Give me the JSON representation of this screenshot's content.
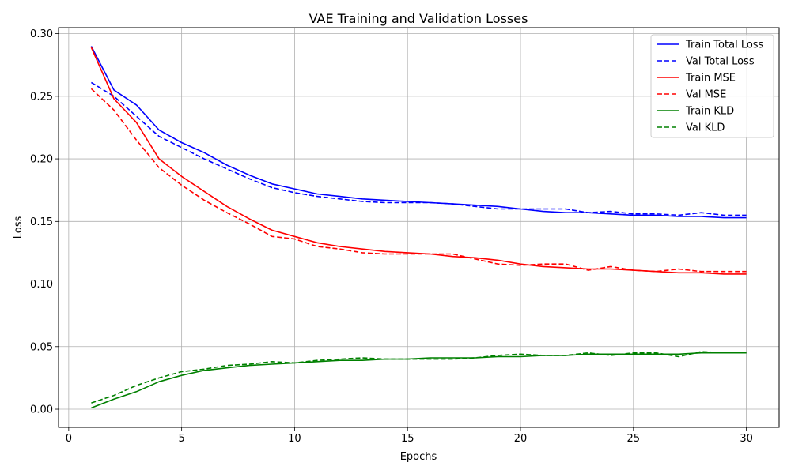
{
  "chart_data": {
    "type": "line",
    "title": "VAE Training and Validation Losses",
    "xlabel": "Epochs",
    "ylabel": "Loss",
    "xlim": [
      -0.45,
      31.45
    ],
    "ylim": [
      -0.0145,
      0.3048
    ],
    "xticks": [
      0,
      5,
      10,
      15,
      20,
      25,
      30
    ],
    "yticks": [
      0.0,
      0.05,
      0.1,
      0.15,
      0.2,
      0.25,
      0.3
    ],
    "xtick_labels": [
      "0",
      "5",
      "10",
      "15",
      "20",
      "25",
      "30"
    ],
    "ytick_labels": [
      "0.00",
      "0.05",
      "0.10",
      "0.15",
      "0.20",
      "0.25",
      "0.30"
    ],
    "grid": true,
    "legend_position": "top-right",
    "x": [
      1,
      2,
      3,
      4,
      5,
      6,
      7,
      8,
      9,
      10,
      11,
      12,
      13,
      14,
      15,
      16,
      17,
      18,
      19,
      20,
      21,
      22,
      23,
      24,
      25,
      26,
      27,
      28,
      29,
      30
    ],
    "series": [
      {
        "name": "Train Total Loss",
        "color": "#0000ff",
        "dash": "solid",
        "values": [
          0.29,
          0.255,
          0.243,
          0.223,
          0.213,
          0.205,
          0.195,
          0.187,
          0.18,
          0.176,
          0.172,
          0.17,
          0.168,
          0.167,
          0.166,
          0.165,
          0.164,
          0.163,
          0.162,
          0.16,
          0.158,
          0.157,
          0.157,
          0.156,
          0.155,
          0.155,
          0.154,
          0.154,
          0.153,
          0.153
        ]
      },
      {
        "name": "Val Total Loss",
        "color": "#0000ff",
        "dash": "dashed",
        "values": [
          0.261,
          0.25,
          0.234,
          0.218,
          0.209,
          0.2,
          0.192,
          0.184,
          0.177,
          0.173,
          0.17,
          0.168,
          0.166,
          0.165,
          0.165,
          0.165,
          0.164,
          0.162,
          0.16,
          0.16,
          0.16,
          0.16,
          0.157,
          0.158,
          0.156,
          0.156,
          0.155,
          0.157,
          0.155,
          0.155
        ]
      },
      {
        "name": "Train MSE",
        "color": "#ff0000",
        "dash": "solid",
        "values": [
          0.289,
          0.248,
          0.229,
          0.2,
          0.186,
          0.174,
          0.162,
          0.152,
          0.143,
          0.138,
          0.133,
          0.13,
          0.128,
          0.126,
          0.125,
          0.124,
          0.122,
          0.121,
          0.119,
          0.116,
          0.114,
          0.113,
          0.112,
          0.112,
          0.111,
          0.11,
          0.109,
          0.109,
          0.108,
          0.108
        ]
      },
      {
        "name": "Val MSE",
        "color": "#ff0000",
        "dash": "dashed",
        "values": [
          0.256,
          0.239,
          0.215,
          0.193,
          0.179,
          0.167,
          0.157,
          0.148,
          0.138,
          0.136,
          0.13,
          0.128,
          0.125,
          0.124,
          0.124,
          0.124,
          0.124,
          0.12,
          0.116,
          0.115,
          0.116,
          0.116,
          0.111,
          0.114,
          0.111,
          0.11,
          0.112,
          0.11,
          0.11,
          0.11
        ]
      },
      {
        "name": "Train KLD",
        "color": "#008000",
        "dash": "solid",
        "values": [
          0.001,
          0.008,
          0.014,
          0.022,
          0.027,
          0.031,
          0.033,
          0.035,
          0.036,
          0.037,
          0.038,
          0.039,
          0.039,
          0.04,
          0.04,
          0.041,
          0.041,
          0.041,
          0.042,
          0.042,
          0.043,
          0.043,
          0.044,
          0.044,
          0.044,
          0.044,
          0.044,
          0.045,
          0.045,
          0.045
        ]
      },
      {
        "name": "Val KLD",
        "color": "#008000",
        "dash": "dashed",
        "values": [
          0.005,
          0.011,
          0.019,
          0.025,
          0.03,
          0.032,
          0.035,
          0.036,
          0.038,
          0.037,
          0.039,
          0.04,
          0.041,
          0.04,
          0.04,
          0.04,
          0.04,
          0.041,
          0.043,
          0.044,
          0.043,
          0.043,
          0.045,
          0.043,
          0.045,
          0.045,
          0.042,
          0.046,
          0.045,
          0.045
        ]
      }
    ]
  }
}
